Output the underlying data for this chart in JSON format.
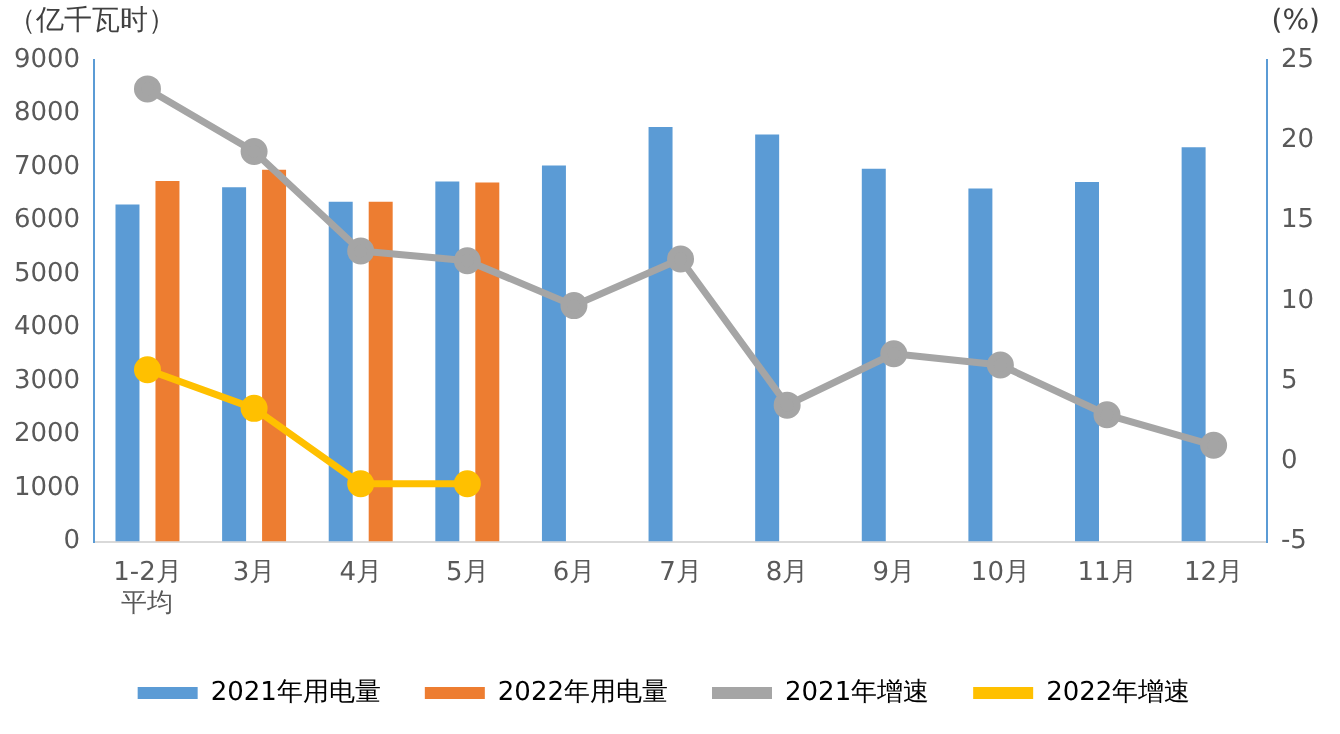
{
  "chart_data": {
    "type": "bar",
    "ylabel": "（亿千瓦时）",
    "y2label": "(%)",
    "categories": [
      "1-2月平均",
      "3月",
      "4月",
      "5月",
      "6月",
      "7月",
      "8月",
      "9月",
      "10月",
      "11月",
      "12月"
    ],
    "series": [
      {
        "name": "2021年用电量",
        "color": "#5b9bd5",
        "values": [
          6300,
          6620,
          6350,
          6730,
          7030,
          7750,
          7610,
          6970,
          6600,
          6720,
          7370
        ]
      },
      {
        "name": "2022年用电量",
        "color": "#ed7d31",
        "values": [
          6740,
          6950,
          6350,
          6710,
          null,
          null,
          null,
          null,
          null,
          null,
          null
        ]
      },
      {
        "name": "2021年增速",
        "type": "line",
        "axis": "y2",
        "color": "#a5a5a5",
        "values": [
          23.2,
          19.3,
          13.1,
          12.5,
          9.7,
          12.6,
          3.5,
          6.7,
          6.0,
          2.9,
          1.0
        ]
      },
      {
        "name": "2022年增速",
        "type": "line",
        "axis": "y2",
        "color": "#ffc000",
        "values": [
          5.7,
          3.3,
          -1.4,
          -1.4,
          null,
          null,
          null,
          null,
          null,
          null,
          null
        ]
      }
    ],
    "ylim": [
      0,
      9000
    ],
    "yticks": [
      0,
      1000,
      2000,
      3000,
      4000,
      5000,
      6000,
      7000,
      8000,
      9000
    ],
    "y2lim": [
      -5,
      25
    ],
    "y2ticks": [
      -5,
      0,
      5,
      10,
      15,
      20,
      25
    ],
    "grid": false,
    "legend": "bottom",
    "marker": "circle"
  }
}
